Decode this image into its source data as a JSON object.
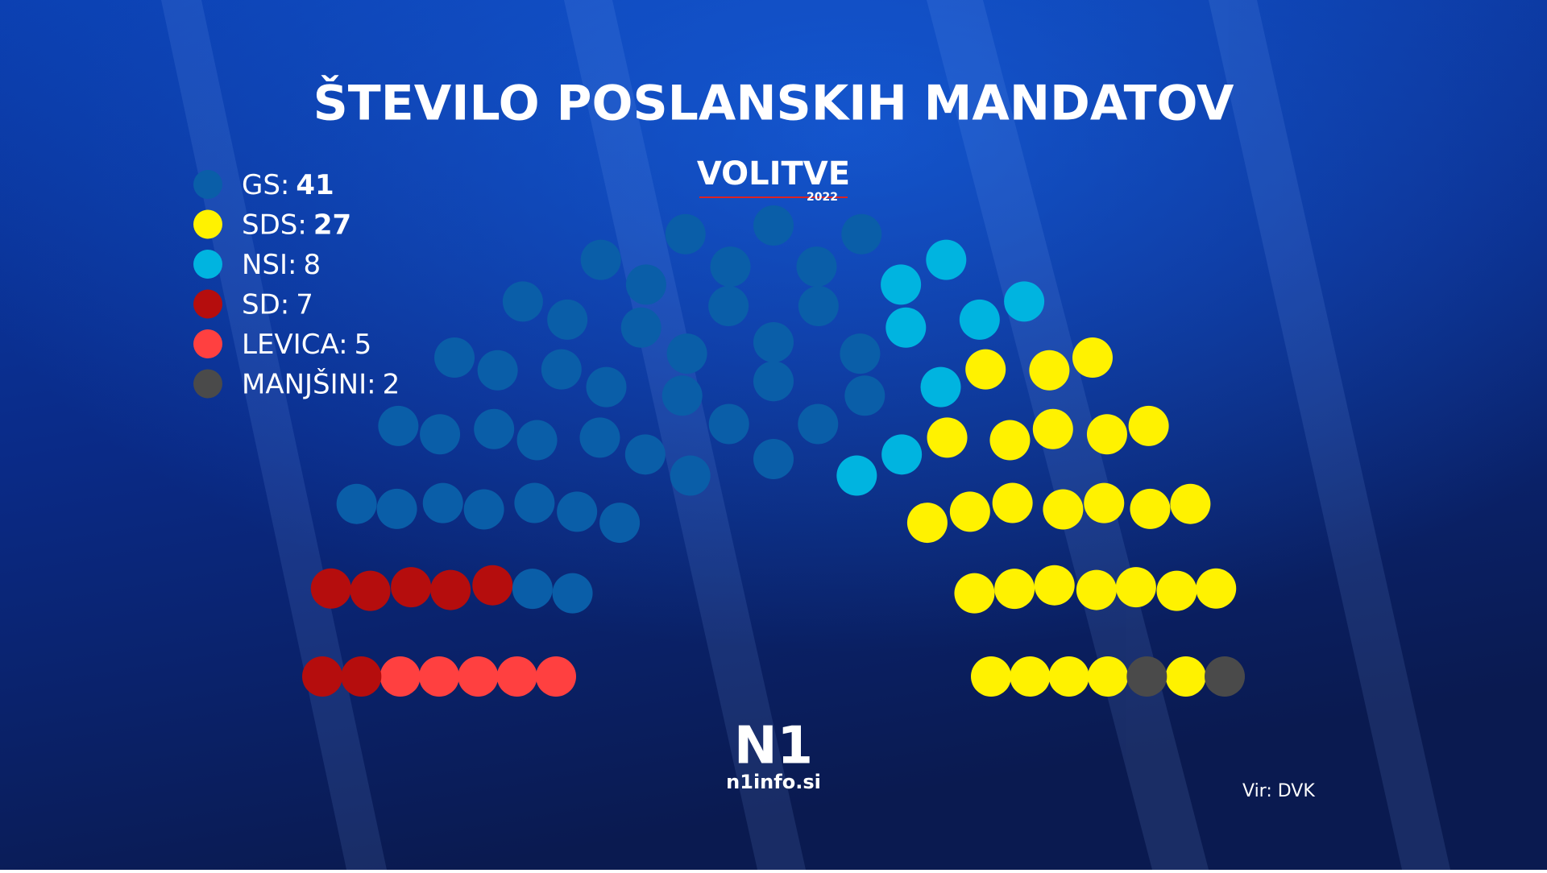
{
  "chart_data": {
    "type": "parliament",
    "title": "ŠTEVILO POSLANSKIH MANDATOV",
    "categories": [
      "GS:",
      "SDS:",
      "NSI:",
      "SD:",
      "LEVICA:",
      "MANJŠINI:"
    ],
    "values": [
      41,
      27,
      8,
      7,
      5,
      2
    ],
    "colors": [
      "#0a5ea8",
      "#fff200",
      "#00b4e0",
      "#b50d0d",
      "#ff4040",
      "#4a4a4a"
    ],
    "logo": {
      "name": "VOLITVE",
      "year": "2022"
    },
    "brand": {
      "name": "N1",
      "site": "n1info.si"
    },
    "source": "Vir: DVK"
  }
}
